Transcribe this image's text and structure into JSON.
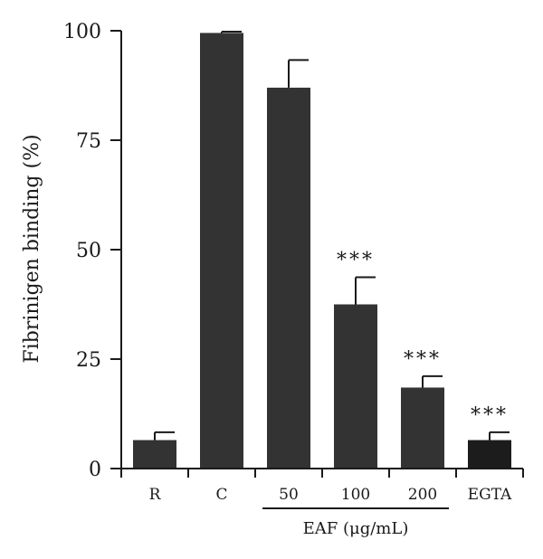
{
  "chart_data": {
    "type": "bar",
    "title": "",
    "xlabel": "",
    "ylabel": "Fibrinigen binding (%)",
    "ylim": [
      0,
      100
    ],
    "yticks": [
      "0",
      "25",
      "50",
      "75",
      "100"
    ],
    "categories": [
      "R",
      "C",
      "50",
      "100",
      "200",
      "EGTA"
    ],
    "values": [
      6.5,
      99.5,
      87,
      37.5,
      18.5,
      6.5
    ],
    "errors": [
      1.8,
      0.3,
      6.3,
      6.2,
      2.6,
      1.8
    ],
    "significance": [
      "",
      "",
      "",
      "***",
      "***",
      "***"
    ],
    "group": {
      "label": "EAF (μg/mL)",
      "members": [
        "50",
        "100",
        "200"
      ]
    },
    "grid": false,
    "colors": {
      "bar": "#333333",
      "bar_last": "#1c1c1c",
      "axis": "#1a1a1a"
    }
  }
}
